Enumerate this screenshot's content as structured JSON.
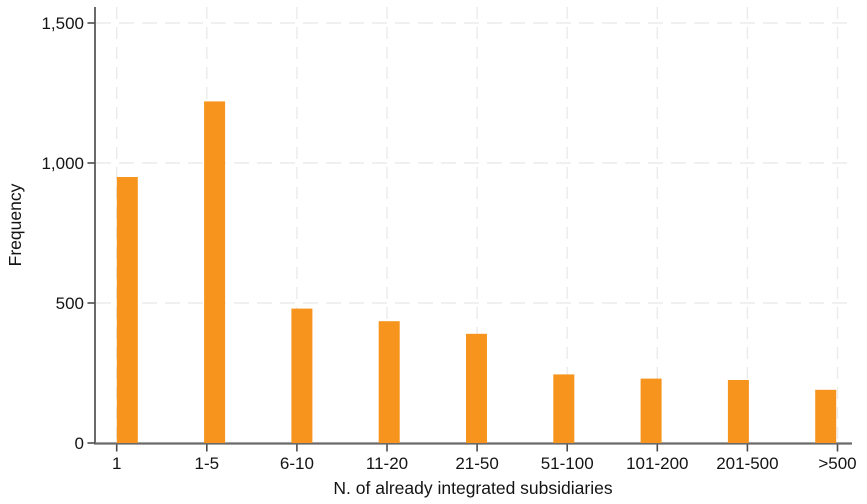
{
  "chart_data": {
    "type": "bar",
    "title": "",
    "categories": [
      "1",
      "1-5",
      "6-10",
      "11-20",
      "21-50",
      "51-100",
      "101-200",
      "201-500",
      ">500"
    ],
    "values": [
      950,
      1220,
      480,
      435,
      390,
      245,
      230,
      225,
      190
    ],
    "xlabel": "N. of already integrated subsidiaries",
    "ylabel": "Frequency",
    "ylim": [
      0,
      1500
    ],
    "yticks": [
      0,
      500,
      1000,
      1500
    ],
    "ytick_labels": [
      "0",
      "500",
      "1,000",
      "1,500"
    ],
    "grid": "dashed horizontal and vertical gridlines at every tick",
    "legend_position": "none",
    "colors": {
      "bar": "#F7941D",
      "grid": "#EBEBEB",
      "axis": "#6A6A6A",
      "tick": "#4D4D4D",
      "text": "#141414",
      "background": "#FFFFFF"
    }
  }
}
